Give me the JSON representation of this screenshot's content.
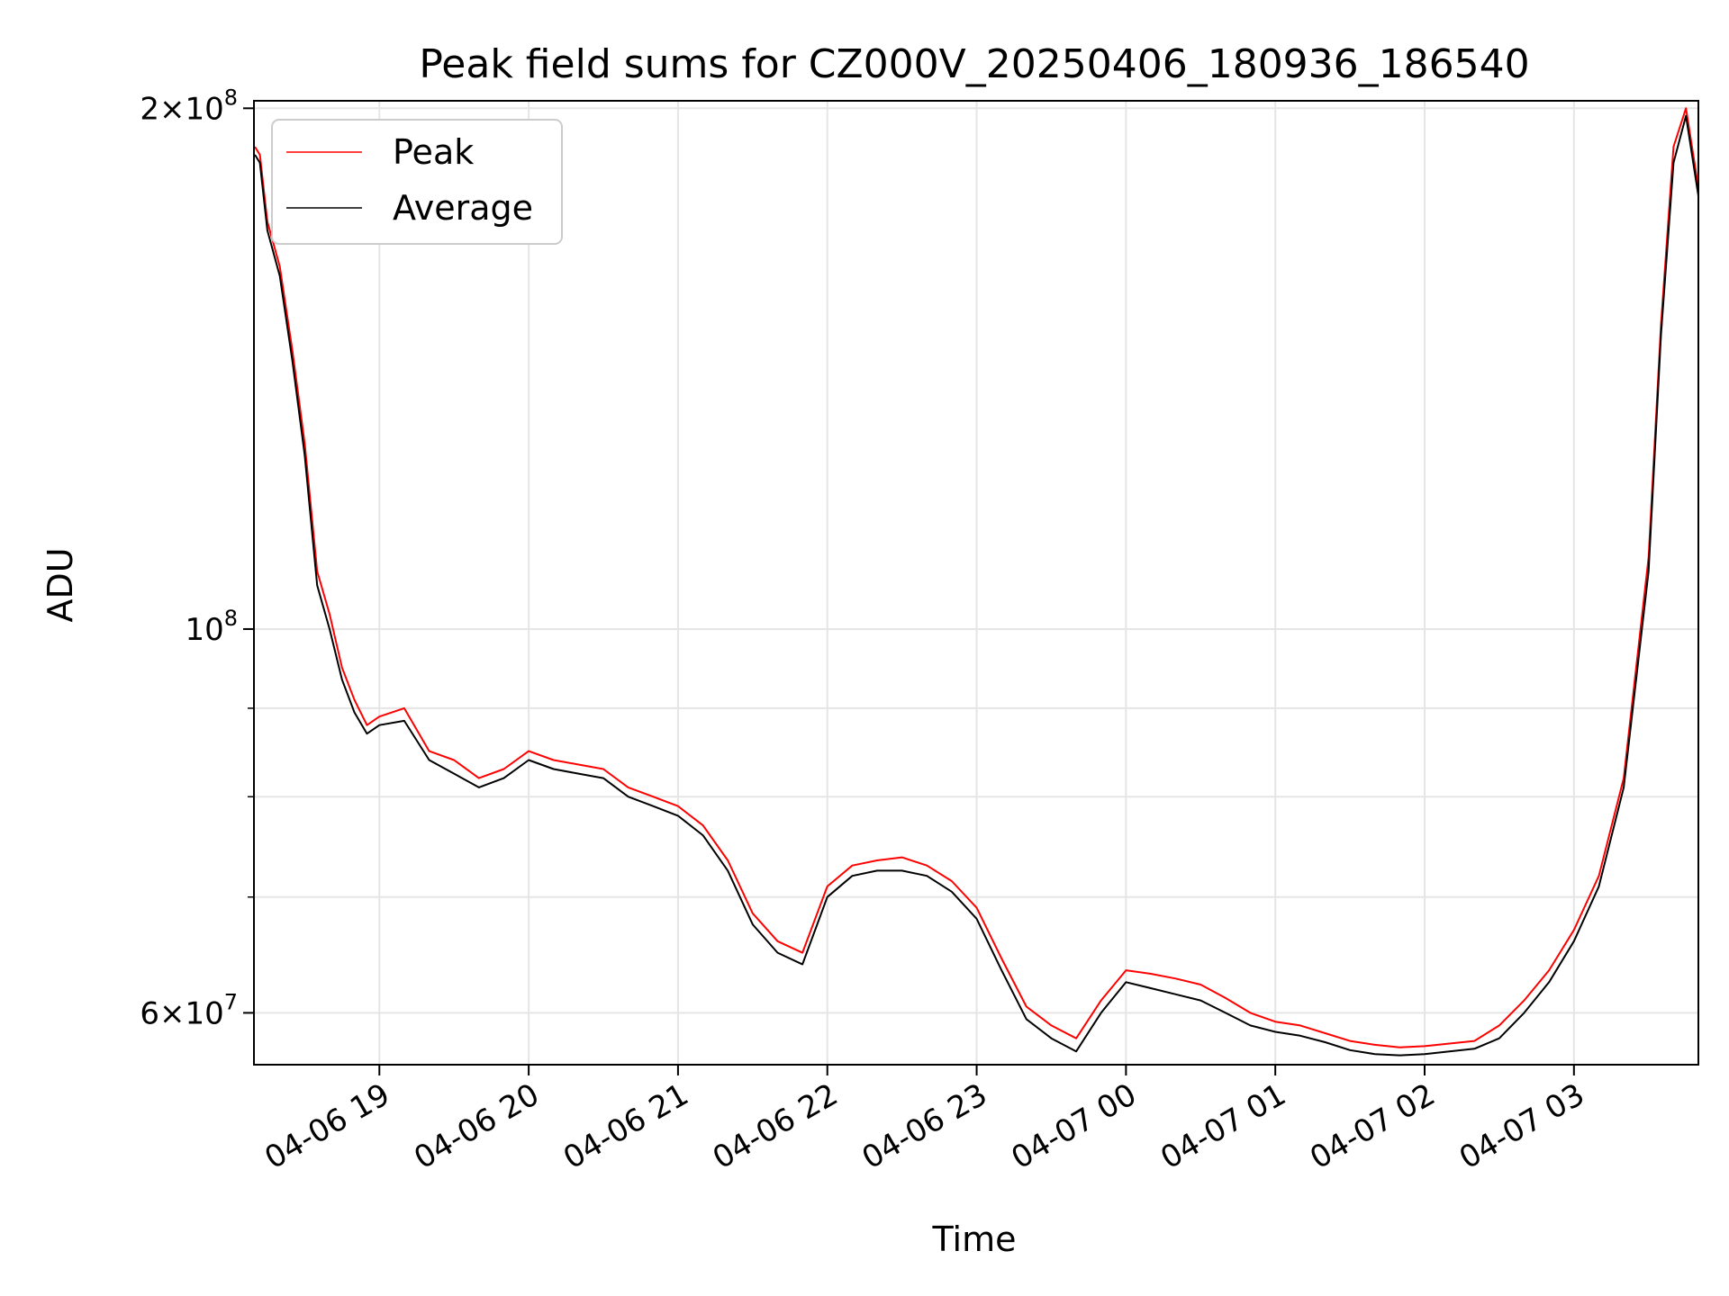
{
  "chart_data": {
    "type": "line",
    "title": "Peak field sums for CZ000V_20250406_180936_186540",
    "xlabel": "Time",
    "ylabel": "ADU",
    "yscale": "log",
    "ylim": [
      56000000,
      202000000
    ],
    "xlim": [
      "2025-04-06 18:09:36",
      "2025-04-07 03:50:00"
    ],
    "grid": true,
    "legend_position": "top-left",
    "x_ticks": [
      {
        "t": "2025-04-06 19:00",
        "label": "04-06 19"
      },
      {
        "t": "2025-04-06 20:00",
        "label": "04-06 20"
      },
      {
        "t": "2025-04-06 21:00",
        "label": "04-06 21"
      },
      {
        "t": "2025-04-06 22:00",
        "label": "04-06 22"
      },
      {
        "t": "2025-04-06 23:00",
        "label": "04-06 23"
      },
      {
        "t": "2025-04-07 00:00",
        "label": "04-07 00"
      },
      {
        "t": "2025-04-07 01:00",
        "label": "04-07 01"
      },
      {
        "t": "2025-04-07 02:00",
        "label": "04-07 02"
      },
      {
        "t": "2025-04-07 03:00",
        "label": "04-07 03"
      }
    ],
    "y_ticks": [
      {
        "value": 60000000,
        "base": "6×10",
        "exp": "7"
      },
      {
        "value": 100000000,
        "base": "10",
        "exp": "8"
      },
      {
        "value": 200000000,
        "base": "2×10",
        "exp": "8"
      }
    ],
    "y_minor_ticks": [
      70000000,
      80000000,
      90000000
    ],
    "colors": {
      "Peak": "#ff0000",
      "Average": "#000000"
    },
    "x": [
      "2025-04-06 18:10",
      "2025-04-06 18:12",
      "2025-04-06 18:15",
      "2025-04-06 18:20",
      "2025-04-06 18:25",
      "2025-04-06 18:30",
      "2025-04-06 18:35",
      "2025-04-06 18:40",
      "2025-04-06 18:45",
      "2025-04-06 18:50",
      "2025-04-06 18:55",
      "2025-04-06 19:00",
      "2025-04-06 19:10",
      "2025-04-06 19:20",
      "2025-04-06 19:30",
      "2025-04-06 19:40",
      "2025-04-06 19:50",
      "2025-04-06 20:00",
      "2025-04-06 20:10",
      "2025-04-06 20:20",
      "2025-04-06 20:30",
      "2025-04-06 20:40",
      "2025-04-06 20:50",
      "2025-04-06 21:00",
      "2025-04-06 21:10",
      "2025-04-06 21:20",
      "2025-04-06 21:30",
      "2025-04-06 21:40",
      "2025-04-06 21:50",
      "2025-04-06 22:00",
      "2025-04-06 22:10",
      "2025-04-06 22:20",
      "2025-04-06 22:30",
      "2025-04-06 22:40",
      "2025-04-06 22:50",
      "2025-04-06 23:00",
      "2025-04-06 23:10",
      "2025-04-06 23:20",
      "2025-04-06 23:30",
      "2025-04-06 23:40",
      "2025-04-06 23:50",
      "2025-04-07 00:00",
      "2025-04-07 00:10",
      "2025-04-07 00:20",
      "2025-04-07 00:30",
      "2025-04-07 00:40",
      "2025-04-07 00:50",
      "2025-04-07 01:00",
      "2025-04-07 01:10",
      "2025-04-07 01:20",
      "2025-04-07 01:30",
      "2025-04-07 01:40",
      "2025-04-07 01:50",
      "2025-04-07 02:00",
      "2025-04-07 02:10",
      "2025-04-07 02:20",
      "2025-04-07 02:30",
      "2025-04-07 02:40",
      "2025-04-07 02:50",
      "2025-04-07 03:00",
      "2025-04-07 03:10",
      "2025-04-07 03:20",
      "2025-04-07 03:30",
      "2025-04-07 03:35",
      "2025-04-07 03:40",
      "2025-04-07 03:45",
      "2025-04-07 03:50"
    ],
    "series": [
      {
        "name": "Peak",
        "values": [
          190000000,
          188000000,
          172000000,
          162000000,
          145000000,
          128000000,
          108000000,
          102000000,
          95000000,
          91000000,
          88000000,
          89000000,
          90000000,
          85000000,
          84000000,
          82000000,
          83000000,
          85000000,
          84000000,
          83500000,
          83000000,
          81000000,
          80000000,
          79000000,
          77000000,
          73500000,
          68500000,
          66000000,
          65000000,
          71000000,
          73000000,
          73500000,
          73800000,
          73000000,
          71500000,
          69000000,
          64500000,
          60500000,
          59000000,
          58000000,
          61000000,
          63500000,
          63200000,
          62800000,
          62300000,
          61200000,
          60000000,
          59300000,
          59000000,
          58400000,
          57800000,
          57500000,
          57300000,
          57400000,
          57600000,
          57800000,
          59000000,
          61000000,
          63500000,
          67000000,
          72000000,
          82000000,
          110000000,
          150000000,
          190000000,
          200000000,
          180000000
        ]
      },
      {
        "name": "Average",
        "values": [
          188000000,
          186000000,
          170000000,
          160000000,
          143000000,
          126000000,
          106000000,
          100000000,
          93500000,
          89500000,
          87000000,
          88000000,
          88500000,
          84000000,
          82500000,
          81000000,
          82000000,
          84000000,
          83000000,
          82500000,
          82000000,
          80000000,
          79000000,
          78000000,
          76000000,
          72500000,
          67500000,
          65000000,
          64000000,
          70000000,
          72000000,
          72500000,
          72500000,
          72000000,
          70500000,
          68000000,
          63500000,
          59500000,
          58000000,
          57000000,
          60000000,
          62500000,
          62000000,
          61500000,
          61000000,
          60000000,
          59000000,
          58500000,
          58200000,
          57700000,
          57100000,
          56800000,
          56700000,
          56800000,
          57000000,
          57200000,
          58000000,
          60000000,
          62500000,
          66000000,
          71000000,
          81000000,
          108000000,
          148000000,
          186000000,
          198000000,
          178000000
        ]
      }
    ],
    "legend": [
      {
        "name": "Peak"
      },
      {
        "name": "Average"
      }
    ]
  }
}
